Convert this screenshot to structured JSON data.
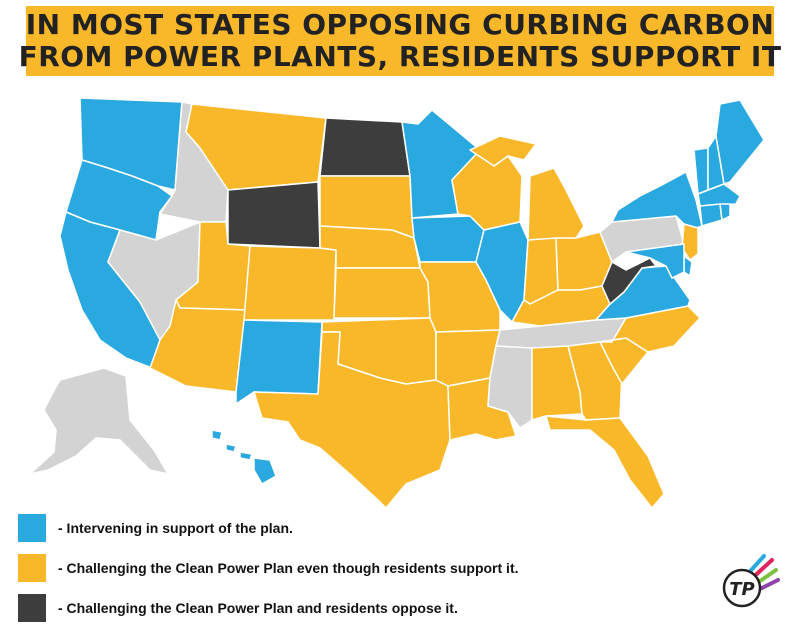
{
  "title": {
    "line1": "IN MOST STATES OPPOSING CURBING CARBON",
    "line2": "FROM POWER PLANTS, RESIDENTS SUPPORT IT"
  },
  "colors": {
    "support": "#2aa8e0",
    "challenge_support": "#f9b82a",
    "challenge_oppose": "#3d3d3d",
    "neutral": "#d3d3d3",
    "border": "#ffffff"
  },
  "legend": [
    {
      "category": "support",
      "label": "- Intervening in support of the plan."
    },
    {
      "category": "challenge_support",
      "label": "- Challenging the Clean Power Plan even though residents support it."
    },
    {
      "category": "challenge_oppose",
      "label": "- Challenging the Clean Power Plan and residents oppose it."
    }
  ],
  "states": {
    "WA": "support",
    "OR": "support",
    "CA": "support",
    "ID": "neutral",
    "NV": "neutral",
    "MT": "challenge_support",
    "WY": "challenge_oppose",
    "UT": "challenge_support",
    "AZ": "challenge_support",
    "CO": "challenge_support",
    "NM": "support",
    "ND": "challenge_oppose",
    "SD": "challenge_support",
    "NE": "challenge_support",
    "KS": "challenge_support",
    "OK": "challenge_support",
    "TX": "challenge_support",
    "MN": "support",
    "IA": "support",
    "MO": "challenge_support",
    "AR": "challenge_support",
    "LA": "challenge_support",
    "WI": "challenge_support",
    "IL": "support",
    "MI": "challenge_support",
    "IN": "challenge_support",
    "OH": "challenge_support",
    "KY": "challenge_support",
    "TN": "neutral",
    "MS": "neutral",
    "AL": "challenge_support",
    "GA": "challenge_support",
    "FL": "challenge_support",
    "SC": "challenge_support",
    "NC": "challenge_support",
    "VA": "support",
    "WV": "challenge_oppose",
    "PA": "neutral",
    "NY": "support",
    "NJ": "challenge_support",
    "MD": "support",
    "DE": "support",
    "ME": "support",
    "NH": "support",
    "VT": "support",
    "MA": "support",
    "CT": "support",
    "RI": "support",
    "AK": "neutral",
    "HI": "support"
  },
  "logo_text": "TP"
}
